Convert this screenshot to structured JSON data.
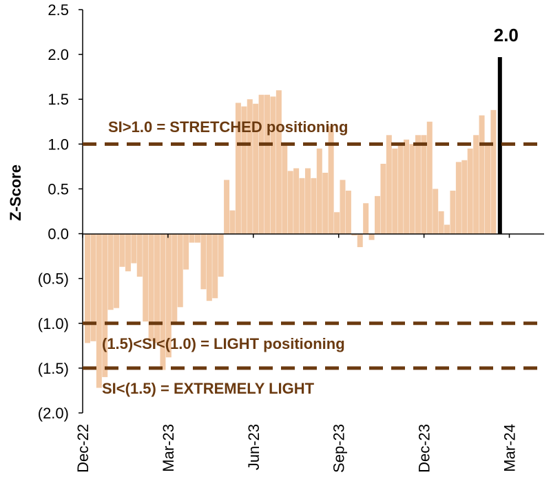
{
  "chart_data": {
    "type": "bar",
    "ylabel": "Z-Score",
    "ylim": [
      -2.0,
      2.5
    ],
    "y_ticks": [
      {
        "value": 2.5,
        "label": "2.5"
      },
      {
        "value": 2.0,
        "label": "2.0"
      },
      {
        "value": 1.5,
        "label": "1.5"
      },
      {
        "value": 1.0,
        "label": "1.0"
      },
      {
        "value": 0.5,
        "label": "0.5"
      },
      {
        "value": 0.0,
        "label": "0.0"
      },
      {
        "value": -0.5,
        "label": "(0.5)"
      },
      {
        "value": -1.0,
        "label": "(1.0)"
      },
      {
        "value": -1.5,
        "label": "(1.5)"
      },
      {
        "value": -2.0,
        "label": "(2.0)"
      }
    ],
    "x_ticks": [
      "Dec-22",
      "Mar-23",
      "Jun-23",
      "Sep-23",
      "Dec-23",
      "Mar-24"
    ],
    "x_start": "2022-12",
    "x_end": "2024-03",
    "bar_color": "#f2c9a6",
    "highlight_color": "#000000",
    "threshold_color": "#6b3a10",
    "values": [
      -1.22,
      -1.2,
      -1.72,
      -1.6,
      -0.85,
      -0.83,
      -0.37,
      -0.42,
      -0.33,
      -0.48,
      -0.98,
      -1.2,
      -1.22,
      -1.52,
      -1.38,
      -1.0,
      -0.82,
      -0.4,
      -0.1,
      -0.1,
      -0.62,
      -0.75,
      -0.72,
      -0.48,
      0.6,
      0.26,
      1.46,
      1.42,
      1.5,
      1.45,
      1.55,
      1.55,
      1.53,
      1.6,
      1.0,
      0.7,
      0.73,
      0.62,
      0.73,
      0.62,
      0.95,
      0.68,
      1.2,
      0.24,
      0.6,
      0.48,
      -0.02,
      -0.15,
      0.34,
      -0.07,
      0.42,
      0.78,
      1.1,
      0.95,
      1.0,
      1.05,
      1.0,
      1.1,
      1.1,
      1.25,
      0.5,
      0.25,
      0.1,
      0.48,
      0.8,
      0.82,
      0.95,
      1.1,
      1.32,
      1.0,
      1.38
    ],
    "highlight": {
      "value": 1.97,
      "label": "2.0"
    },
    "thresholds": [
      {
        "value": 1.0,
        "label": "SI>1.0 = STRETCHED positioning"
      },
      {
        "value": -1.0,
        "label": "(1.5)<SI<(1.0) = LIGHT positioning"
      },
      {
        "value": -1.5,
        "label": "SI<(1.5) = EXTREMELY LIGHT"
      }
    ]
  }
}
